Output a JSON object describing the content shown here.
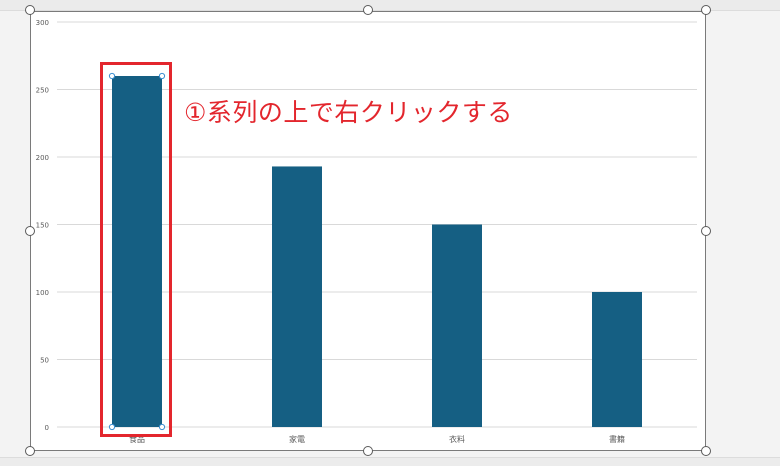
{
  "annotation": {
    "callout": "①系列の上で右クリックする"
  },
  "colors": {
    "bar": "#155f83",
    "highlight": "#e3262d",
    "gridline": "#d9d9d9",
    "selection_point": "#3d8fd1"
  },
  "chart_data": {
    "type": "bar",
    "categories": [
      "食品",
      "家電",
      "衣料",
      "書籍"
    ],
    "values": [
      260,
      193,
      150,
      100
    ],
    "ylim": [
      0,
      300
    ],
    "yticks": [
      "0",
      "50",
      "100",
      "150",
      "200",
      "250",
      "300"
    ],
    "grid": true,
    "selected_series": true
  }
}
